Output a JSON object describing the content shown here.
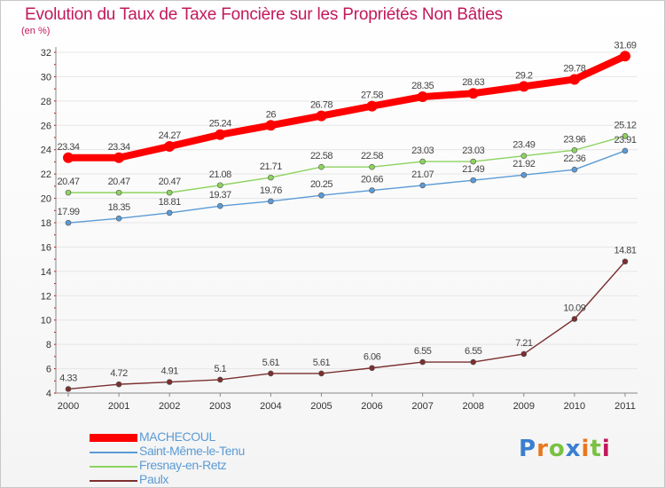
{
  "chart_data": {
    "type": "line",
    "title": "Evolution du Taux de Taxe Foncière sur les Propriétés Non Bâties",
    "ylabel": "(en %)",
    "xlabel": "",
    "categories": [
      "2000",
      "2001",
      "2002",
      "2003",
      "2004",
      "2005",
      "2006",
      "2007",
      "2008",
      "2009",
      "2010",
      "2011"
    ],
    "ylim": [
      4,
      32
    ],
    "yticks": [
      4,
      6,
      8,
      10,
      12,
      14,
      16,
      18,
      20,
      22,
      24,
      26,
      28,
      30,
      32
    ],
    "series": [
      {
        "name": "MACHECOUL",
        "color": "#ff0000",
        "values": [
          23.34,
          23.34,
          24.27,
          25.24,
          26,
          26.78,
          27.58,
          28.35,
          28.63,
          29.2,
          29.78,
          31.69
        ],
        "labels": [
          "23.34",
          "23.34",
          "24.27",
          "25.24",
          "26",
          "26.78",
          "27.58",
          "28.35",
          "28.63",
          "29.2",
          "29.78",
          "31.69"
        ]
      },
      {
        "name": "Saint-Même-le-Tenu",
        "color": "#5b9bd5",
        "values": [
          17.99,
          18.35,
          18.81,
          19.37,
          19.76,
          20.25,
          20.66,
          21.07,
          21.49,
          21.92,
          22.36,
          23.91
        ],
        "labels": [
          "17.99",
          "18.35",
          "18.81",
          "19.37",
          "19.76",
          "20.25",
          "20.66",
          "21.07",
          "21.49",
          "21.92",
          "22.36",
          "23.91"
        ]
      },
      {
        "name": "Fresnay-en-Retz",
        "color": "#8dd35f",
        "values": [
          20.47,
          20.47,
          20.47,
          21.08,
          21.71,
          22.58,
          22.58,
          23.03,
          23.03,
          23.49,
          23.96,
          25.12
        ],
        "labels": [
          "20.47",
          "20.47",
          "20.47",
          "21.08",
          "21.71",
          "22.58",
          "22.58",
          "23.03",
          "23.03",
          "23.49",
          "23.96",
          "25.12"
        ]
      },
      {
        "name": "Paulx",
        "color": "#7b2f2f",
        "values": [
          4.33,
          4.72,
          4.91,
          5.1,
          5.61,
          5.61,
          6.06,
          6.55,
          6.55,
          7.21,
          10.09,
          14.81
        ],
        "labels": [
          "4.33",
          "4.72",
          "4.91",
          "5.1",
          "5.61",
          "5.61",
          "6.06",
          "6.55",
          "6.55",
          "7.21",
          "10.09",
          "14.81"
        ]
      }
    ]
  },
  "logo": {
    "letters": [
      "P",
      "r",
      "o",
      "x",
      "i",
      "t",
      "i"
    ],
    "colors": [
      "#3a7fd0",
      "#e8781e",
      "#7ac142",
      "#3a7fd0",
      "#e8781e",
      "#7ac142",
      "#c2185b"
    ]
  }
}
